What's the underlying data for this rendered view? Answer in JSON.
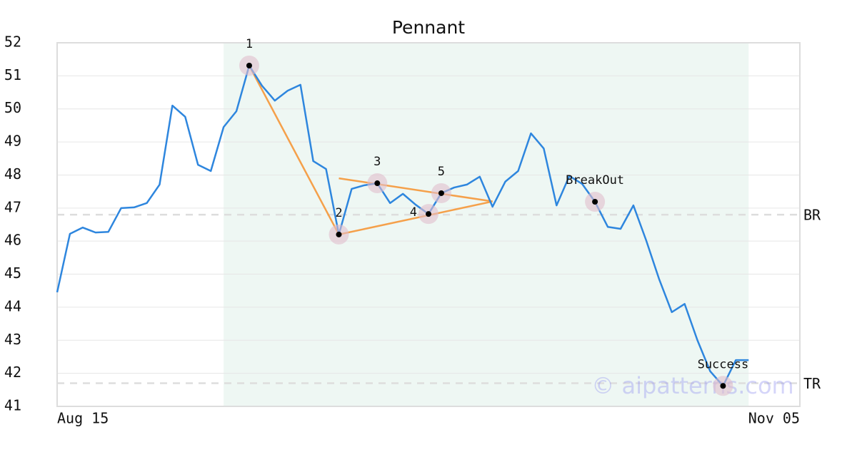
{
  "chart_data": {
    "type": "line",
    "title": "Pennant",
    "categories": [
      "Aug 15",
      null,
      null,
      null,
      null,
      null,
      null,
      null,
      null,
      null,
      null,
      null,
      null,
      null,
      null,
      null,
      null,
      null,
      null,
      null,
      null,
      null,
      null,
      null,
      null,
      null,
      null,
      null,
      null,
      null,
      null,
      null,
      null,
      null,
      null,
      null,
      null,
      null,
      null,
      null,
      null,
      null,
      null,
      null,
      null,
      null,
      null,
      null,
      null,
      null,
      null,
      null,
      null,
      null,
      null,
      null,
      null,
      null,
      "Nov 05"
    ],
    "series": [
      {
        "color": "#2e86de",
        "values": [
          44.45,
          46.22,
          46.41,
          46.26,
          46.28,
          47.0,
          47.02,
          47.15,
          47.71,
          50.1,
          49.76,
          48.31,
          48.12,
          49.45,
          49.93,
          51.31,
          50.7,
          50.25,
          50.55,
          50.73,
          48.42,
          48.18,
          46.2,
          47.58,
          47.69,
          47.75,
          47.15,
          47.43,
          47.1,
          46.82,
          47.45,
          47.62,
          47.71,
          47.95,
          47.04,
          47.8,
          48.12,
          49.26,
          48.8,
          47.08,
          47.97,
          47.73,
          47.19,
          46.43,
          46.37,
          47.08,
          46.02,
          44.86,
          43.85,
          44.1,
          43.0,
          42.06,
          41.62,
          42.4,
          42.4,
          null,
          null,
          null,
          null
        ]
      }
    ],
    "ylim": [
      41,
      52
    ],
    "yticks": [
      41,
      42,
      43,
      44,
      45,
      46,
      47,
      48,
      49,
      50,
      51,
      52
    ],
    "grid": true,
    "highlight_range": [
      13,
      54
    ],
    "highlight_color": "#eef7f3",
    "annotations": [
      {
        "label": "1",
        "index": 15
      },
      {
        "label": "2",
        "index": 22
      },
      {
        "label": "3",
        "index": 25
      },
      {
        "label": "4",
        "index": 29
      },
      {
        "label": "5",
        "index": 30
      },
      {
        "label": "BreakOut",
        "index": 42
      },
      {
        "label": "Success",
        "index": 52
      }
    ],
    "trend_lines": {
      "color": "#f5a04a",
      "lines": [
        {
          "x": [
            15,
            22
          ],
          "y": [
            51.31,
            46.2
          ]
        },
        {
          "x": [
            22,
            34
          ],
          "y": [
            46.2,
            47.2
          ]
        },
        {
          "x": [
            22,
            34
          ],
          "y": [
            47.9,
            47.2
          ]
        }
      ]
    },
    "reference_lines": [
      {
        "label": "BR",
        "value": 46.8
      },
      {
        "label": "TR",
        "value": 41.7
      }
    ],
    "watermark": "© aipatterns.com"
  }
}
